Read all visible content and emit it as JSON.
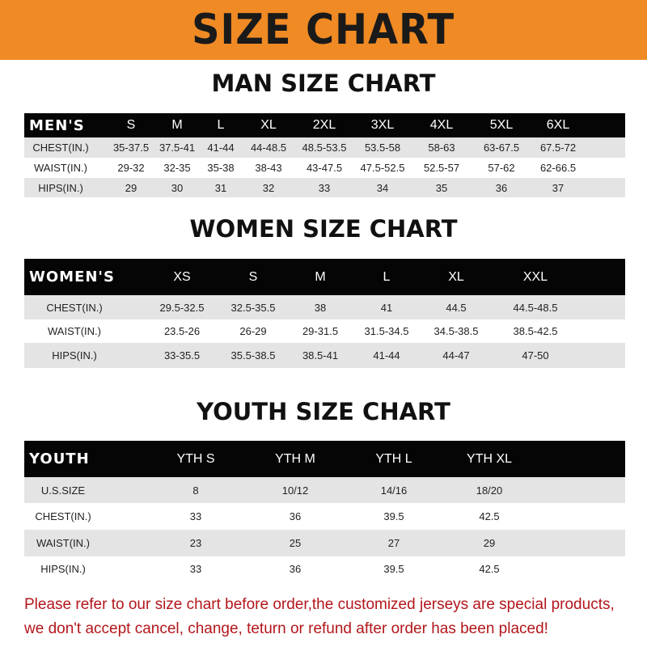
{
  "banner": {
    "title": "SIZE CHART",
    "color": "#f08a24"
  },
  "men": {
    "title": "MAN SIZE CHART",
    "header": [
      "MEN'S",
      "S",
      "M",
      "L",
      "XL",
      "2XL",
      "3XL",
      "4XL",
      "5XL",
      "6XL"
    ],
    "rows": [
      [
        "CHEST(IN.)",
        "35-37.5",
        "37.5-41",
        "41-44",
        "44-48.5",
        "48.5-53.5",
        "53.5-58",
        "58-63",
        "63-67.5",
        "67.5-72"
      ],
      [
        "WAIST(IN.)",
        "29-32",
        "32-35",
        "35-38",
        "38-43",
        "43-47.5",
        "47.5-52.5",
        "52.5-57",
        "57-62",
        "62-66.5"
      ],
      [
        "HIPS(IN.)",
        "29",
        "30",
        "31",
        "32",
        "33",
        "34",
        "35",
        "36",
        "37"
      ]
    ]
  },
  "women": {
    "title": "WOMEN SIZE CHART",
    "header": [
      "WOMEN'S",
      "XS",
      "S",
      "M",
      "L",
      "XL",
      "XXL"
    ],
    "rows": [
      [
        "CHEST(IN.)",
        "29.5-32.5",
        "32.5-35.5",
        "38",
        "41",
        "44.5",
        "44.5-48.5"
      ],
      [
        "WAIST(IN.)",
        "23.5-26",
        "26-29",
        "29-31.5",
        "31.5-34.5",
        "34.5-38.5",
        "38.5-42.5"
      ],
      [
        "HIPS(IN.)",
        "33-35.5",
        "35.5-38.5",
        "38.5-41",
        "41-44",
        "44-47",
        "47-50"
      ]
    ]
  },
  "youth": {
    "title": "YOUTH SIZE CHART",
    "header": [
      "YOUTH",
      "YTH S",
      "YTH M",
      "YTH L",
      "YTH XL"
    ],
    "rows": [
      [
        "U.S.SIZE",
        "8",
        "10/12",
        "14/16",
        "18/20"
      ],
      [
        "CHEST(IN.)",
        "33",
        "36",
        "39.5",
        "42.5"
      ],
      [
        "WAIST(IN.)",
        "23",
        "25",
        "27",
        "29"
      ],
      [
        "HIPS(IN.)",
        "33",
        "36",
        "39.5",
        "42.5"
      ]
    ]
  },
  "footer": {
    "line1": "Please refer to our size chart before order,the customized jerseys are special products,",
    "line2": "we don't accept cancel, change, teturn or refund after order has been placed!",
    "color": "#b3161b"
  }
}
